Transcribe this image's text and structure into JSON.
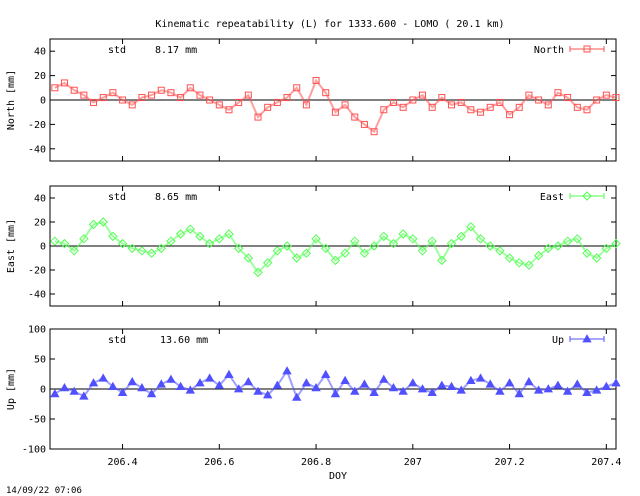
{
  "title": "Kinematic repeatability (L) for 1333.600 - LOMO  ( 20.1 km)",
  "footer_timestamp": "14/09/22 07:06",
  "chart_data": [
    {
      "type": "scatter",
      "name": "north",
      "series_name": "North",
      "color": "#ff5050",
      "marker": "square",
      "ylabel": "North [mm]",
      "std_label": "std",
      "std_value": "8.17 mm",
      "ylim": [
        -50,
        50
      ],
      "yticks": [
        -40,
        -20,
        0,
        20,
        40
      ],
      "xlim": [
        206.25,
        207.42
      ],
      "xticks": [
        "206.4",
        "206.6",
        "206.8",
        "207",
        "207.2",
        "207.4"
      ],
      "xtick_values": [
        206.4,
        206.6,
        206.8,
        207.0,
        207.2,
        207.4
      ],
      "show_xlabels": false,
      "x": [
        206.26,
        206.28,
        206.3,
        206.32,
        206.34,
        206.36,
        206.38,
        206.4,
        206.42,
        206.44,
        206.46,
        206.48,
        206.5,
        206.52,
        206.54,
        206.56,
        206.58,
        206.6,
        206.62,
        206.64,
        206.66,
        206.68,
        206.7,
        206.72,
        206.74,
        206.76,
        206.78,
        206.8,
        206.82,
        206.84,
        206.86,
        206.88,
        206.9,
        206.92,
        206.94,
        206.96,
        206.98,
        207.0,
        207.02,
        207.04,
        207.06,
        207.08,
        207.1,
        207.12,
        207.14,
        207.16,
        207.18,
        207.2,
        207.22,
        207.24,
        207.26,
        207.28,
        207.3,
        207.32,
        207.34,
        207.36,
        207.38,
        207.4,
        207.42
      ],
      "values": [
        10,
        14,
        8,
        4,
        -2,
        2,
        6,
        0,
        -4,
        2,
        4,
        8,
        6,
        2,
        10,
        4,
        0,
        -4,
        -8,
        -2,
        4,
        -14,
        -6,
        -2,
        2,
        10,
        -4,
        16,
        6,
        -10,
        -4,
        -14,
        -20,
        -26,
        -8,
        -2,
        -6,
        0,
        4,
        -6,
        2,
        -4,
        -2,
        -8,
        -10,
        -6,
        -2,
        -12,
        -6,
        4,
        0,
        -4,
        6,
        2,
        -6,
        -8,
        0,
        4,
        2
      ]
    },
    {
      "type": "scatter",
      "name": "east",
      "series_name": "East",
      "color": "#50ff50",
      "marker": "diamond",
      "ylabel": "East [mm]",
      "std_label": "std",
      "std_value": "8.65 mm",
      "ylim": [
        -50,
        50
      ],
      "yticks": [
        -40,
        -20,
        0,
        20,
        40
      ],
      "xlim": [
        206.25,
        207.42
      ],
      "xticks": [
        "206.4",
        "206.6",
        "206.8",
        "207",
        "207.2",
        "207.4"
      ],
      "xtick_values": [
        206.4,
        206.6,
        206.8,
        207.0,
        207.2,
        207.4
      ],
      "show_xlabels": false,
      "x": [
        206.26,
        206.28,
        206.3,
        206.32,
        206.34,
        206.36,
        206.38,
        206.4,
        206.42,
        206.44,
        206.46,
        206.48,
        206.5,
        206.52,
        206.54,
        206.56,
        206.58,
        206.6,
        206.62,
        206.64,
        206.66,
        206.68,
        206.7,
        206.72,
        206.74,
        206.76,
        206.78,
        206.8,
        206.82,
        206.84,
        206.86,
        206.88,
        206.9,
        206.92,
        206.94,
        206.96,
        206.98,
        207.0,
        207.02,
        207.04,
        207.06,
        207.08,
        207.1,
        207.12,
        207.14,
        207.16,
        207.18,
        207.2,
        207.22,
        207.24,
        207.26,
        207.28,
        207.3,
        207.32,
        207.34,
        207.36,
        207.38,
        207.4,
        207.42
      ],
      "values": [
        4,
        2,
        -4,
        6,
        18,
        20,
        8,
        2,
        -2,
        -4,
        -6,
        -2,
        4,
        10,
        14,
        8,
        2,
        6,
        10,
        -2,
        -10,
        -22,
        -14,
        -4,
        0,
        -10,
        -6,
        6,
        -2,
        -12,
        -6,
        4,
        -6,
        0,
        8,
        2,
        10,
        6,
        -4,
        4,
        -12,
        2,
        8,
        16,
        6,
        0,
        -4,
        -10,
        -14,
        -16,
        -8,
        -2,
        0,
        4,
        6,
        -6,
        -10,
        -2,
        2
      ]
    },
    {
      "type": "scatter",
      "name": "up",
      "series_name": "Up",
      "color": "#5050ff",
      "marker": "triangle",
      "ylabel": "Up [mm]",
      "std_label": "std",
      "std_value": "13.60 mm",
      "ylim": [
        -100,
        100
      ],
      "yticks": [
        -100,
        -50,
        0,
        50,
        100
      ],
      "xlim": [
        206.25,
        207.42
      ],
      "xticks": [
        "206.4",
        "206.6",
        "206.8",
        "207",
        "207.2",
        "207.4"
      ],
      "xtick_values": [
        206.4,
        206.6,
        206.8,
        207.0,
        207.2,
        207.4
      ],
      "show_xlabels": true,
      "xlabel": "DOY",
      "x": [
        206.26,
        206.28,
        206.3,
        206.32,
        206.34,
        206.36,
        206.38,
        206.4,
        206.42,
        206.44,
        206.46,
        206.48,
        206.5,
        206.52,
        206.54,
        206.56,
        206.58,
        206.6,
        206.62,
        206.64,
        206.66,
        206.68,
        206.7,
        206.72,
        206.74,
        206.76,
        206.78,
        206.8,
        206.82,
        206.84,
        206.86,
        206.88,
        206.9,
        206.92,
        206.94,
        206.96,
        206.98,
        207.0,
        207.02,
        207.04,
        207.06,
        207.08,
        207.1,
        207.12,
        207.14,
        207.16,
        207.18,
        207.2,
        207.22,
        207.24,
        207.26,
        207.28,
        207.3,
        207.32,
        207.34,
        207.36,
        207.38,
        207.4,
        207.42
      ],
      "values": [
        -8,
        2,
        -4,
        -12,
        10,
        18,
        4,
        -6,
        12,
        2,
        -8,
        8,
        16,
        4,
        -2,
        10,
        18,
        6,
        24,
        0,
        12,
        -4,
        -10,
        6,
        30,
        -14,
        10,
        2,
        24,
        -8,
        14,
        -4,
        8,
        -6,
        16,
        2,
        -4,
        10,
        0,
        -6,
        6,
        4,
        -2,
        14,
        18,
        8,
        -4,
        10,
        -8,
        12,
        -2,
        0,
        6,
        -4,
        8,
        -6,
        -2,
        4,
        10
      ]
    }
  ]
}
